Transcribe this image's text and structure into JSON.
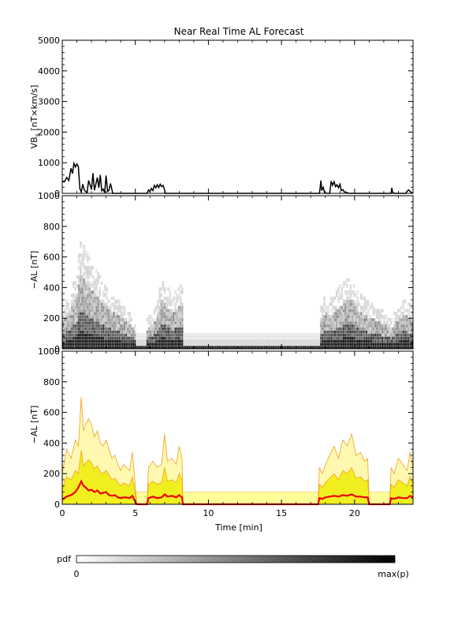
{
  "chart_data": [
    {
      "type": "line",
      "title": "Near Real Time AL Forecast",
      "ylabel_main": "VB",
      "ylabel_sub": "s",
      "ylabel_units": "[nT×km/s]",
      "ylim": [
        0,
        5000
      ],
      "yticks": [
        "0",
        "1000",
        "2000",
        "3000",
        "4000",
        "5000"
      ],
      "xlim": [
        0,
        24
      ],
      "series": [
        {
          "x": [
            0,
            0.15,
            0.3,
            0.45,
            0.6,
            0.7,
            0.8,
            0.9,
            1.0,
            1.1,
            1.2,
            1.3,
            1.4,
            1.5,
            1.6,
            1.7,
            1.8,
            1.9,
            2.0,
            2.1,
            2.2,
            2.3,
            2.4,
            2.5,
            2.6,
            2.7,
            2.8,
            2.9,
            3.0,
            3.1,
            3.2,
            3.3,
            3.4,
            3.45,
            3.6,
            5.8,
            5.9,
            6.0,
            6.1,
            6.2,
            6.3,
            6.4,
            6.5,
            6.6,
            6.7,
            6.8,
            6.9,
            7.0,
            7.05,
            17.6,
            17.7,
            17.75,
            17.85,
            17.95,
            18.1,
            18.3,
            18.4,
            18.5,
            18.6,
            18.7,
            18.8,
            18.9,
            19.0,
            19.1,
            19.2,
            19.3,
            19.4,
            19.6,
            22.5,
            22.55,
            22.6,
            22.7,
            23.5,
            23.6,
            23.7,
            23.85,
            24.0
          ],
          "y": [
            380,
            380,
            520,
            420,
            820,
            650,
            980,
            860,
            960,
            880,
            160,
            40,
            300,
            120,
            60,
            20,
            420,
            280,
            120,
            660,
            100,
            300,
            520,
            180,
            600,
            80,
            140,
            20,
            580,
            60,
            100,
            320,
            120,
            0,
            0,
            0,
            110,
            60,
            160,
            90,
            260,
            180,
            280,
            190,
            300,
            220,
            260,
            120,
            0,
            0,
            420,
            90,
            200,
            20,
            0,
            0,
            400,
            260,
            380,
            220,
            280,
            180,
            300,
            90,
            120,
            40,
            40,
            0,
            0,
            180,
            40,
            0,
            0,
            70,
            110,
            40,
            0
          ]
        }
      ]
    },
    {
      "type": "heatmap",
      "ylabel": "−AL [nT]",
      "ylim": [
        0,
        1000
      ],
      "yticks": [
        "0",
        "200",
        "400",
        "600",
        "800",
        "1000"
      ],
      "xlim": [
        0,
        24
      ],
      "active_intervals": [
        [
          0,
          5.0
        ],
        [
          5.8,
          8.3
        ],
        [
          17.6,
          24.0
        ]
      ],
      "peak_x": [
        0,
        0.5,
        1.0,
        1.3,
        1.6,
        2.0,
        2.5,
        3.0,
        3.5,
        4.0,
        4.5,
        5.0,
        5.8,
        6.5,
        6.8,
        7.5,
        8.2,
        17.6,
        18.0,
        18.5,
        19.0,
        19.5,
        19.8,
        20.2,
        20.5,
        21.0,
        22.0,
        22.5,
        23.0,
        23.5,
        24.0
      ],
      "peak_y": [
        220,
        330,
        480,
        700,
        620,
        530,
        460,
        380,
        320,
        280,
        220,
        160,
        160,
        260,
        460,
        320,
        400,
        230,
        320,
        300,
        380,
        430,
        460,
        360,
        320,
        280,
        220,
        160,
        260,
        300,
        240
      ],
      "colorbar": {
        "label": "pdf",
        "min_label": "0",
        "max_label": "max(p)"
      }
    },
    {
      "type": "area",
      "ylabel": "−AL [nT]",
      "xlabel": "Time [min]",
      "ylim": [
        0,
        1000
      ],
      "yticks": [
        "0",
        "200",
        "400",
        "600",
        "800",
        "1000"
      ],
      "xlim": [
        0,
        24
      ],
      "xticks": [
        "0",
        "5",
        "10",
        "15",
        "20"
      ],
      "x": [
        0,
        0.3,
        0.6,
        0.9,
        1.1,
        1.3,
        1.45,
        1.6,
        1.8,
        2.0,
        2.2,
        2.4,
        2.6,
        2.8,
        3.0,
        3.2,
        3.4,
        3.6,
        3.8,
        4.0,
        4.2,
        4.4,
        4.6,
        4.8,
        5.0,
        5.1,
        5.8,
        5.9,
        6.2,
        6.5,
        6.8,
        7.0,
        7.2,
        7.5,
        7.8,
        8.0,
        8.2,
        8.25,
        17.5,
        17.6,
        17.8,
        18.0,
        18.3,
        18.6,
        18.9,
        19.2,
        19.5,
        19.8,
        20.1,
        20.4,
        20.7,
        20.9,
        21.0,
        22.4,
        22.5,
        22.7,
        23.0,
        23.3,
        23.6,
        23.8,
        24.0
      ],
      "upper_bound": [
        200,
        360,
        300,
        420,
        380,
        700,
        480,
        520,
        560,
        520,
        440,
        480,
        400,
        380,
        420,
        360,
        300,
        320,
        260,
        220,
        260,
        240,
        220,
        340,
        120,
        0,
        0,
        240,
        280,
        240,
        260,
        460,
        280,
        300,
        260,
        380,
        300,
        0,
        0,
        240,
        200,
        260,
        320,
        380,
        300,
        420,
        380,
        460,
        320,
        340,
        280,
        300,
        0,
        0,
        240,
        200,
        300,
        260,
        220,
        340,
        240
      ],
      "inner_band": [
        100,
        180,
        160,
        220,
        200,
        350,
        250,
        270,
        290,
        270,
        230,
        250,
        210,
        200,
        220,
        190,
        160,
        170,
        140,
        120,
        140,
        130,
        120,
        180,
        70,
        0,
        0,
        130,
        150,
        130,
        140,
        240,
        150,
        160,
        140,
        200,
        160,
        0,
        0,
        130,
        110,
        140,
        170,
        200,
        160,
        220,
        200,
        240,
        170,
        180,
        150,
        160,
        0,
        0,
        130,
        110,
        160,
        140,
        120,
        180,
        130
      ],
      "median": [
        30,
        50,
        60,
        80,
        110,
        150,
        120,
        110,
        90,
        95,
        80,
        90,
        70,
        75,
        80,
        60,
        55,
        60,
        45,
        40,
        45,
        45,
        40,
        55,
        15,
        0,
        0,
        40,
        50,
        40,
        45,
        65,
        50,
        55,
        45,
        60,
        45,
        0,
        0,
        40,
        35,
        45,
        50,
        55,
        50,
        60,
        55,
        65,
        50,
        50,
        45,
        45,
        0,
        0,
        40,
        35,
        45,
        40,
        40,
        55,
        45
      ],
      "baseline_band": [
        0,
        80
      ],
      "colors": {
        "outer": "#fff8b0",
        "inner": "#f2ef20",
        "edge": "#f0a020",
        "median": "#ee0000",
        "baseline": "#ffff9a"
      }
    }
  ]
}
